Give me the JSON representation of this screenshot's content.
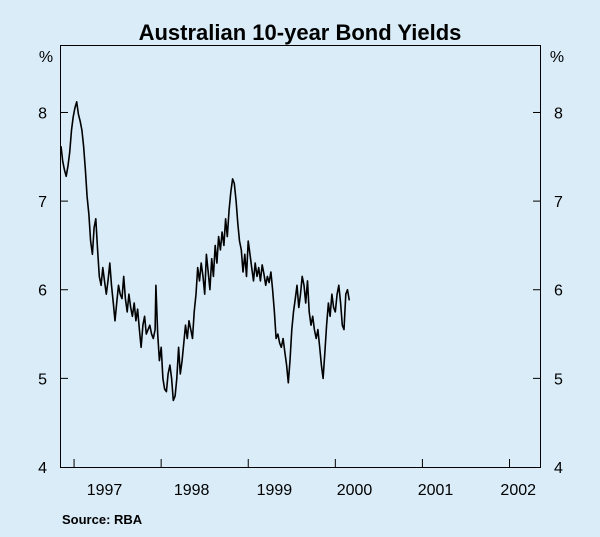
{
  "chart_data": {
    "type": "line",
    "title": "Australian 10-year Bond Yields",
    "y_unit_left": "%",
    "y_unit_right": "%",
    "xlabel": "",
    "ylabel": "",
    "ylim": [
      4,
      8.75
    ],
    "xlim": [
      1996.6,
      2002.1
    ],
    "y_ticks": [
      4,
      5,
      6,
      7,
      8
    ],
    "x_ticks": [
      "1997",
      "1998",
      "1999",
      "2000",
      "2001",
      "2002"
    ],
    "x_tick_positions": [
      1996.75,
      1997.75,
      1998.75,
      1999.75,
      2000.75,
      2001.75
    ],
    "x_label_centers": [
      1997.1,
      1998.1,
      1999.05,
      1999.97,
      2000.9,
      2001.85
    ],
    "grid": false,
    "source": "Source: RBA",
    "series": [
      {
        "values": [
          [
            1996.6,
            7.62
          ],
          [
            1996.62,
            7.45
          ],
          [
            1996.64,
            7.35
          ],
          [
            1996.66,
            7.28
          ],
          [
            1996.68,
            7.4
          ],
          [
            1996.7,
            7.55
          ],
          [
            1996.72,
            7.8
          ],
          [
            1996.74,
            7.95
          ],
          [
            1996.76,
            8.05
          ],
          [
            1996.78,
            8.12
          ],
          [
            1996.8,
            7.98
          ],
          [
            1996.82,
            7.9
          ],
          [
            1996.84,
            7.8
          ],
          [
            1996.86,
            7.62
          ],
          [
            1996.88,
            7.35
          ],
          [
            1996.9,
            7.05
          ],
          [
            1996.92,
            6.85
          ],
          [
            1996.94,
            6.55
          ],
          [
            1996.96,
            6.4
          ],
          [
            1996.98,
            6.7
          ],
          [
            1997.0,
            6.8
          ],
          [
            1997.02,
            6.45
          ],
          [
            1997.04,
            6.15
          ],
          [
            1997.06,
            6.05
          ],
          [
            1997.08,
            6.25
          ],
          [
            1997.1,
            6.1
          ],
          [
            1997.12,
            5.95
          ],
          [
            1997.14,
            6.1
          ],
          [
            1997.16,
            6.3
          ],
          [
            1997.18,
            6.05
          ],
          [
            1997.2,
            5.85
          ],
          [
            1997.22,
            5.65
          ],
          [
            1997.24,
            5.85
          ],
          [
            1997.26,
            6.05
          ],
          [
            1997.28,
            5.95
          ],
          [
            1997.3,
            5.9
          ],
          [
            1997.32,
            6.15
          ],
          [
            1997.34,
            5.9
          ],
          [
            1997.36,
            5.75
          ],
          [
            1997.38,
            5.95
          ],
          [
            1997.4,
            5.8
          ],
          [
            1997.42,
            5.7
          ],
          [
            1997.44,
            5.85
          ],
          [
            1997.46,
            5.65
          ],
          [
            1997.48,
            5.78
          ],
          [
            1997.5,
            5.55
          ],
          [
            1997.52,
            5.35
          ],
          [
            1997.54,
            5.6
          ],
          [
            1997.56,
            5.7
          ],
          [
            1997.58,
            5.5
          ],
          [
            1997.6,
            5.55
          ],
          [
            1997.62,
            5.6
          ],
          [
            1997.64,
            5.5
          ],
          [
            1997.66,
            5.45
          ],
          [
            1997.68,
            5.55
          ],
          [
            1997.69,
            6.05
          ],
          [
            1997.71,
            5.5
          ],
          [
            1997.73,
            5.2
          ],
          [
            1997.75,
            5.35
          ],
          [
            1997.77,
            5.0
          ],
          [
            1997.79,
            4.88
          ],
          [
            1997.81,
            4.85
          ],
          [
            1997.83,
            5.05
          ],
          [
            1997.85,
            5.15
          ],
          [
            1997.87,
            5.0
          ],
          [
            1997.89,
            4.75
          ],
          [
            1997.91,
            4.8
          ],
          [
            1997.93,
            5.0
          ],
          [
            1997.95,
            5.35
          ],
          [
            1997.97,
            5.05
          ],
          [
            1997.99,
            5.2
          ],
          [
            1998.01,
            5.4
          ],
          [
            1998.03,
            5.6
          ],
          [
            1998.05,
            5.45
          ],
          [
            1998.07,
            5.65
          ],
          [
            1998.09,
            5.55
          ],
          [
            1998.11,
            5.45
          ],
          [
            1998.13,
            5.75
          ],
          [
            1998.15,
            5.95
          ],
          [
            1998.17,
            6.25
          ],
          [
            1998.19,
            6.1
          ],
          [
            1998.21,
            6.3
          ],
          [
            1998.23,
            6.15
          ],
          [
            1998.25,
            5.95
          ],
          [
            1998.27,
            6.4
          ],
          [
            1998.29,
            6.2
          ],
          [
            1998.31,
            6.0
          ],
          [
            1998.33,
            6.35
          ],
          [
            1998.35,
            6.15
          ],
          [
            1998.37,
            6.5
          ],
          [
            1998.39,
            6.3
          ],
          [
            1998.41,
            6.6
          ],
          [
            1998.43,
            6.45
          ],
          [
            1998.45,
            6.65
          ],
          [
            1998.47,
            6.5
          ],
          [
            1998.49,
            6.8
          ],
          [
            1998.51,
            6.6
          ],
          [
            1998.53,
            6.9
          ],
          [
            1998.55,
            7.1
          ],
          [
            1998.57,
            7.25
          ],
          [
            1998.59,
            7.2
          ],
          [
            1998.61,
            7.0
          ],
          [
            1998.63,
            6.75
          ],
          [
            1998.65,
            6.55
          ],
          [
            1998.67,
            6.45
          ],
          [
            1998.69,
            6.2
          ],
          [
            1998.71,
            6.4
          ],
          [
            1998.73,
            6.15
          ],
          [
            1998.75,
            6.55
          ],
          [
            1998.77,
            6.4
          ],
          [
            1998.79,
            6.25
          ],
          [
            1998.81,
            6.1
          ],
          [
            1998.83,
            6.3
          ],
          [
            1998.85,
            6.15
          ],
          [
            1998.87,
            6.25
          ],
          [
            1998.89,
            6.1
          ],
          [
            1998.91,
            6.28
          ],
          [
            1998.93,
            6.18
          ],
          [
            1998.95,
            6.05
          ],
          [
            1998.97,
            6.15
          ],
          [
            1998.99,
            6.08
          ],
          [
            1999.01,
            6.2
          ],
          [
            1999.03,
            6.0
          ],
          [
            1999.05,
            5.75
          ],
          [
            1999.07,
            5.45
          ],
          [
            1999.09,
            5.5
          ],
          [
            1999.11,
            5.4
          ],
          [
            1999.13,
            5.35
          ],
          [
            1999.15,
            5.45
          ],
          [
            1999.17,
            5.3
          ],
          [
            1999.19,
            5.15
          ],
          [
            1999.21,
            4.95
          ],
          [
            1999.23,
            5.2
          ],
          [
            1999.25,
            5.55
          ],
          [
            1999.27,
            5.75
          ],
          [
            1999.29,
            5.9
          ],
          [
            1999.31,
            6.05
          ],
          [
            1999.33,
            5.8
          ],
          [
            1999.35,
            5.95
          ],
          [
            1999.37,
            6.15
          ],
          [
            1999.39,
            6.05
          ],
          [
            1999.41,
            5.85
          ],
          [
            1999.43,
            6.1
          ],
          [
            1999.45,
            5.75
          ],
          [
            1999.47,
            5.6
          ],
          [
            1999.49,
            5.7
          ],
          [
            1999.51,
            5.55
          ],
          [
            1999.53,
            5.45
          ],
          [
            1999.55,
            5.55
          ],
          [
            1999.57,
            5.35
          ],
          [
            1999.59,
            5.15
          ],
          [
            1999.61,
            5.0
          ],
          [
            1999.63,
            5.3
          ],
          [
            1999.65,
            5.6
          ],
          [
            1999.67,
            5.85
          ],
          [
            1999.69,
            5.7
          ],
          [
            1999.71,
            5.95
          ],
          [
            1999.73,
            5.8
          ],
          [
            1999.75,
            5.75
          ],
          [
            1999.77,
            5.95
          ],
          [
            1999.79,
            6.05
          ],
          [
            1999.81,
            5.85
          ],
          [
            1999.83,
            5.6
          ],
          [
            1999.85,
            5.55
          ],
          [
            1999.87,
            5.95
          ],
          [
            1999.89,
            6.0
          ],
          [
            1999.91,
            5.88
          ]
        ]
      }
    ]
  }
}
